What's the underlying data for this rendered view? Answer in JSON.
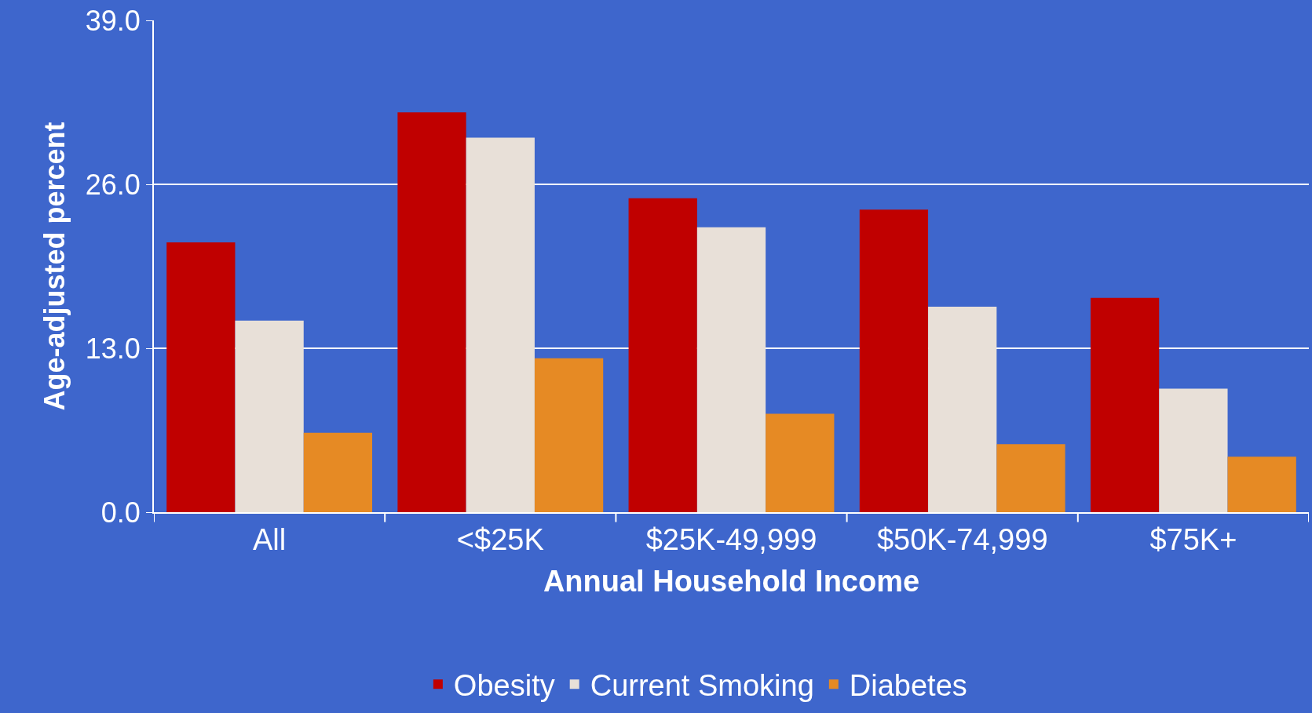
{
  "chart_data": {
    "type": "bar",
    "xlabel": "Annual Household Income",
    "ylabel": "Age-adjusted percent",
    "categories": [
      "All",
      "<$25K",
      "$25K-49,999",
      "$50K-74,999",
      "$75K+"
    ],
    "series": [
      {
        "name": "Obesity",
        "color": "#c00000",
        "values": [
          21.4,
          31.7,
          24.9,
          24.0,
          17.0
        ]
      },
      {
        "name": "Current Smoking",
        "color": "#e8e0d8",
        "values": [
          15.2,
          29.7,
          22.6,
          16.3,
          9.8
        ]
      },
      {
        "name": "Diabetes",
        "color": "#e68a24",
        "values": [
          6.3,
          12.2,
          7.8,
          5.4,
          4.4
        ]
      }
    ],
    "ylim": [
      0,
      39
    ],
    "yticks": [
      {
        "value": 0,
        "label": "0.0"
      },
      {
        "value": 13,
        "label": "13.0"
      },
      {
        "value": 26,
        "label": "26.0"
      },
      {
        "value": 39,
        "label": "39.0"
      }
    ],
    "grid": "y",
    "legend": "bottom"
  }
}
